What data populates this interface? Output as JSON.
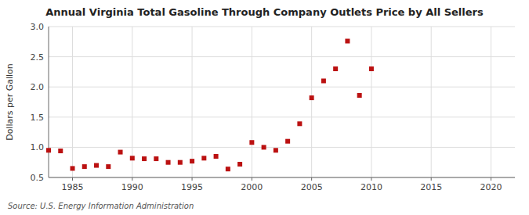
{
  "chart_data": {
    "type": "scatter",
    "title": "Annual Virginia Total Gasoline Through Company Outlets Price by All Sellers",
    "y_label": "Dollars per Gallon",
    "source": "Source: U.S. Energy Information Administration",
    "color": "#bb1111",
    "marker": "square",
    "grid": true,
    "xlim": [
      1983,
      2022
    ],
    "ylim": [
      0.5,
      3.0
    ],
    "xticks": [
      1985,
      1990,
      1995,
      2000,
      2005,
      2010,
      2015,
      2020
    ],
    "yticks": [
      0.5,
      {
        "value": 1.0,
        "label": "1.0"
      },
      1.5,
      {
        "value": 2.0,
        "label": "2.0"
      },
      2.5,
      {
        "value": 3.0,
        "label": "3.0"
      }
    ],
    "x": [
      1983,
      1984,
      1985,
      1986,
      1987,
      1988,
      1989,
      1990,
      1991,
      1992,
      1993,
      1994,
      1995,
      1996,
      1997,
      1998,
      1999,
      2000,
      2001,
      2002,
      2003,
      2004,
      2005,
      2006,
      2007,
      2008,
      2009,
      2010
    ],
    "values": [
      0.95,
      0.94,
      0.65,
      0.68,
      0.7,
      0.68,
      0.92,
      0.82,
      0.81,
      0.81,
      0.75,
      0.75,
      0.77,
      0.82,
      0.85,
      0.64,
      0.72,
      1.08,
      1.0,
      0.95,
      1.1,
      1.39,
      1.82,
      2.1,
      2.3,
      2.76,
      1.86,
      2.3
    ]
  }
}
